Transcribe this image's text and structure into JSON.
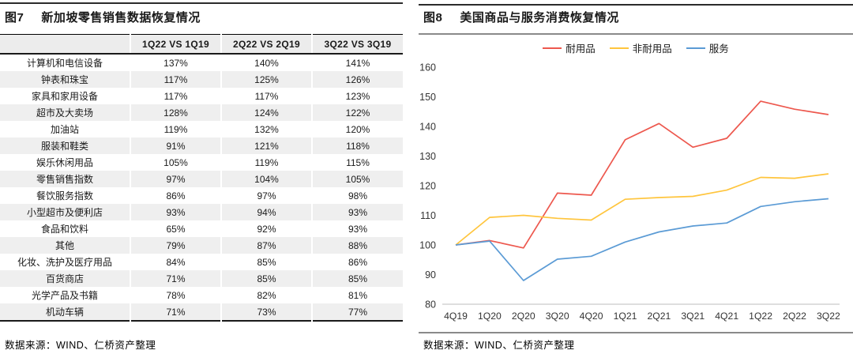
{
  "figure7": {
    "tag": "图7",
    "title": "新加坡零售销售数据恢复情况",
    "source": "数据来源：WIND、仁桥资产整理",
    "table": {
      "columns": [
        "",
        "1Q22 VS 1Q19",
        "2Q22 VS 2Q19",
        "3Q22 VS 3Q19"
      ],
      "rows": [
        [
          "计算机和电信设备",
          "137%",
          "140%",
          "141%"
        ],
        [
          "钟表和珠宝",
          "117%",
          "125%",
          "126%"
        ],
        [
          "家具和家用设备",
          "117%",
          "117%",
          "123%"
        ],
        [
          "超市及大卖场",
          "128%",
          "124%",
          "122%"
        ],
        [
          "加油站",
          "119%",
          "132%",
          "120%"
        ],
        [
          "服装和鞋类",
          "91%",
          "121%",
          "118%"
        ],
        [
          "娱乐休闲用品",
          "105%",
          "119%",
          "115%"
        ],
        [
          "零售销售指数",
          "97%",
          "104%",
          "105%"
        ],
        [
          "餐饮服务指数",
          "86%",
          "97%",
          "98%"
        ],
        [
          "小型超市及便利店",
          "93%",
          "94%",
          "93%"
        ],
        [
          "食品和饮料",
          "65%",
          "92%",
          "93%"
        ],
        [
          "其他",
          "79%",
          "87%",
          "88%"
        ],
        [
          "化妆、洗护及医疗用品",
          "84%",
          "85%",
          "86%"
        ],
        [
          "百货商店",
          "71%",
          "85%",
          "85%"
        ],
        [
          "光学产品及书籍",
          "78%",
          "82%",
          "81%"
        ],
        [
          "机动车辆",
          "71%",
          "73%",
          "77%"
        ]
      ]
    }
  },
  "figure8": {
    "tag": "图8",
    "title": "美国商品与服务消费恢复情况",
    "source": "数据来源：WIND、仁桥资产整理"
  },
  "chart_data": {
    "type": "line",
    "title": "美国商品与服务消费恢复情况",
    "x": [
      "4Q19",
      "1Q20",
      "2Q20",
      "3Q20",
      "4Q20",
      "1Q21",
      "2Q21",
      "3Q21",
      "4Q21",
      "1Q22",
      "2Q22",
      "3Q22"
    ],
    "series": [
      {
        "name": "耐用品",
        "color": "#ED584E",
        "values": [
          100,
          101.5,
          99,
          117.5,
          116.8,
          135.5,
          141,
          133,
          136,
          148.5,
          145.8,
          144
        ]
      },
      {
        "name": "非耐用品",
        "color": "#FFC53D",
        "values": [
          100,
          109.3,
          110,
          109,
          108.4,
          115.4,
          116,
          116.4,
          118.5,
          122.8,
          122.5,
          124
        ]
      },
      {
        "name": "服务",
        "color": "#5B9BD5",
        "values": [
          100,
          101.3,
          88,
          95.2,
          96.2,
          101,
          104.4,
          106.4,
          107.4,
          113,
          114.6,
          115.6
        ]
      }
    ],
    "ylim": [
      80,
      160
    ],
    "ytick_step": 10,
    "xlabel": "",
    "ylabel": "",
    "grid": false,
    "legend_position": "top",
    "axis_color": "#c9c9c9",
    "tick_text_color": "#333333"
  }
}
